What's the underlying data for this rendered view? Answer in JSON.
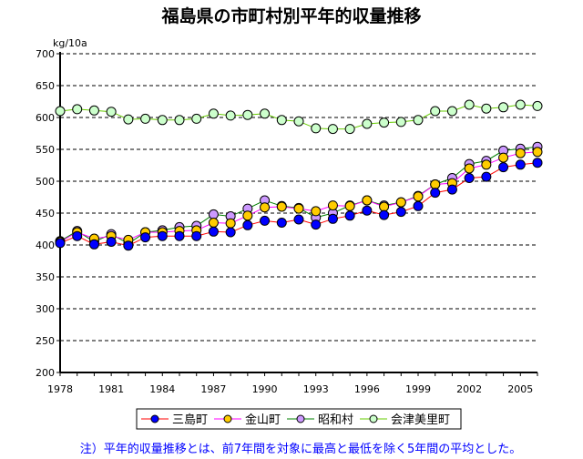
{
  "chart_data": {
    "type": "line",
    "title": "福島県の市町村別平年的収量推移",
    "ylabel": "kg/10a",
    "xlabel": "",
    "ylim": [
      200,
      700
    ],
    "xlim": [
      1978,
      2006
    ],
    "yticks": [
      200,
      250,
      300,
      350,
      400,
      450,
      500,
      550,
      600,
      650,
      700
    ],
    "xticks": [
      1978,
      1981,
      1984,
      1987,
      1990,
      1993,
      1996,
      1999,
      2002,
      2005
    ],
    "grid": "horizontal dashed",
    "legend": "bottom",
    "x": [
      1978,
      1979,
      1980,
      1981,
      1982,
      1983,
      1984,
      1985,
      1986,
      1987,
      1988,
      1989,
      1990,
      1991,
      1992,
      1993,
      1994,
      1995,
      1996,
      1997,
      1998,
      1999,
      2000,
      2001,
      2002,
      2003,
      2004,
      2005,
      2006
    ],
    "series": [
      {
        "name": "三島町",
        "line": "#ff0000",
        "marker": "#0000ff",
        "values": [
          403,
          414,
          401,
          405,
          399,
          412,
          414,
          414,
          414,
          421,
          420,
          431,
          438,
          435,
          440,
          432,
          441,
          446,
          454,
          447,
          452,
          461,
          482,
          487,
          505,
          507,
          522,
          526,
          529
        ]
      },
      {
        "name": "金山町",
        "line": "#ff00ff",
        "marker": "#ffcc00",
        "values": [
          405,
          420,
          410,
          414,
          408,
          420,
          420,
          422,
          423,
          435,
          434,
          446,
          459,
          460,
          457,
          453,
          462,
          461,
          470,
          460,
          467,
          476,
          495,
          497,
          520,
          526,
          537,
          544,
          546
        ]
      },
      {
        "name": "昭和村",
        "line": "#008000",
        "marker": "#cc99ff",
        "values": [
          406,
          422,
          405,
          417,
          402,
          420,
          423,
          428,
          430,
          448,
          445,
          457,
          470,
          461,
          458,
          443,
          450,
          462,
          470,
          462,
          467,
          477,
          495,
          505,
          527,
          532,
          548,
          551,
          554
        ]
      },
      {
        "name": "会津美里町",
        "line": "#66cc00",
        "marker": "#ccffcc",
        "values": [
          610,
          613,
          611,
          609,
          597,
          598,
          596,
          596,
          598,
          606,
          603,
          604,
          606,
          596,
          594,
          583,
          582,
          582,
          590,
          592,
          593,
          596,
          610,
          610,
          620,
          614,
          616,
          620,
          618
        ]
      }
    ],
    "note": "注）平年的収量推移とは、前7年間を対象に最高と最低を除く5年間の平均とした。"
  }
}
